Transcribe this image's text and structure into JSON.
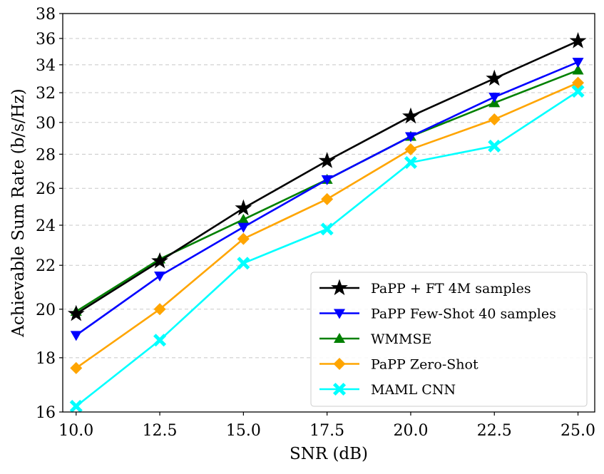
{
  "chart_data": {
    "type": "line",
    "title": "",
    "xlabel": "SNR (dB)",
    "ylabel": "Achievable Sum Rate (b/s/Hz)",
    "xlim": [
      9.6,
      25.5
    ],
    "ylim": [
      16,
      38
    ],
    "yscale": "log",
    "grid": "horizontal-dashed",
    "legend_position": "lower-right",
    "x": [
      10.0,
      12.5,
      15.0,
      17.5,
      20.0,
      22.5,
      25.0
    ],
    "xticks": [
      10.0,
      12.5,
      15.0,
      17.5,
      20.0,
      22.5,
      25.0
    ],
    "xtick_labels": [
      "10.0",
      "12.5",
      "15.0",
      "17.5",
      "20.0",
      "22.5",
      "25.0"
    ],
    "yticks": [
      16,
      18,
      20,
      22,
      24,
      26,
      28,
      30,
      32,
      34,
      36,
      38
    ],
    "ytick_labels": [
      "16",
      "18",
      "20",
      "22",
      "24",
      "26",
      "28",
      "30",
      "32",
      "34",
      "36",
      "38"
    ],
    "series": [
      {
        "name": "PaPP + FT 4M samples",
        "color": "#000000",
        "marker": "star",
        "values": [
          19.8,
          22.2,
          24.9,
          27.6,
          30.4,
          33.0,
          35.8
        ]
      },
      {
        "name": "PaPP Few-Shot 40 samples",
        "color": "#0000ff",
        "marker": "triangle-down",
        "values": [
          18.9,
          21.5,
          23.9,
          26.5,
          29.1,
          31.7,
          34.2
        ]
      },
      {
        "name": "WMMSE",
        "color": "#008000",
        "marker": "triangle-up",
        "values": [
          19.9,
          22.3,
          24.3,
          26.5,
          29.1,
          31.3,
          33.6
        ]
      },
      {
        "name": "PaPP Zero-Shot",
        "color": "#ffa500",
        "marker": "diamond",
        "values": [
          17.6,
          20.0,
          23.3,
          25.4,
          28.3,
          30.2,
          32.7
        ]
      },
      {
        "name": "MAML CNN",
        "color": "#00ffff",
        "marker": "x-filled",
        "values": [
          16.2,
          18.7,
          22.1,
          23.8,
          27.5,
          28.5,
          32.1
        ]
      }
    ]
  }
}
